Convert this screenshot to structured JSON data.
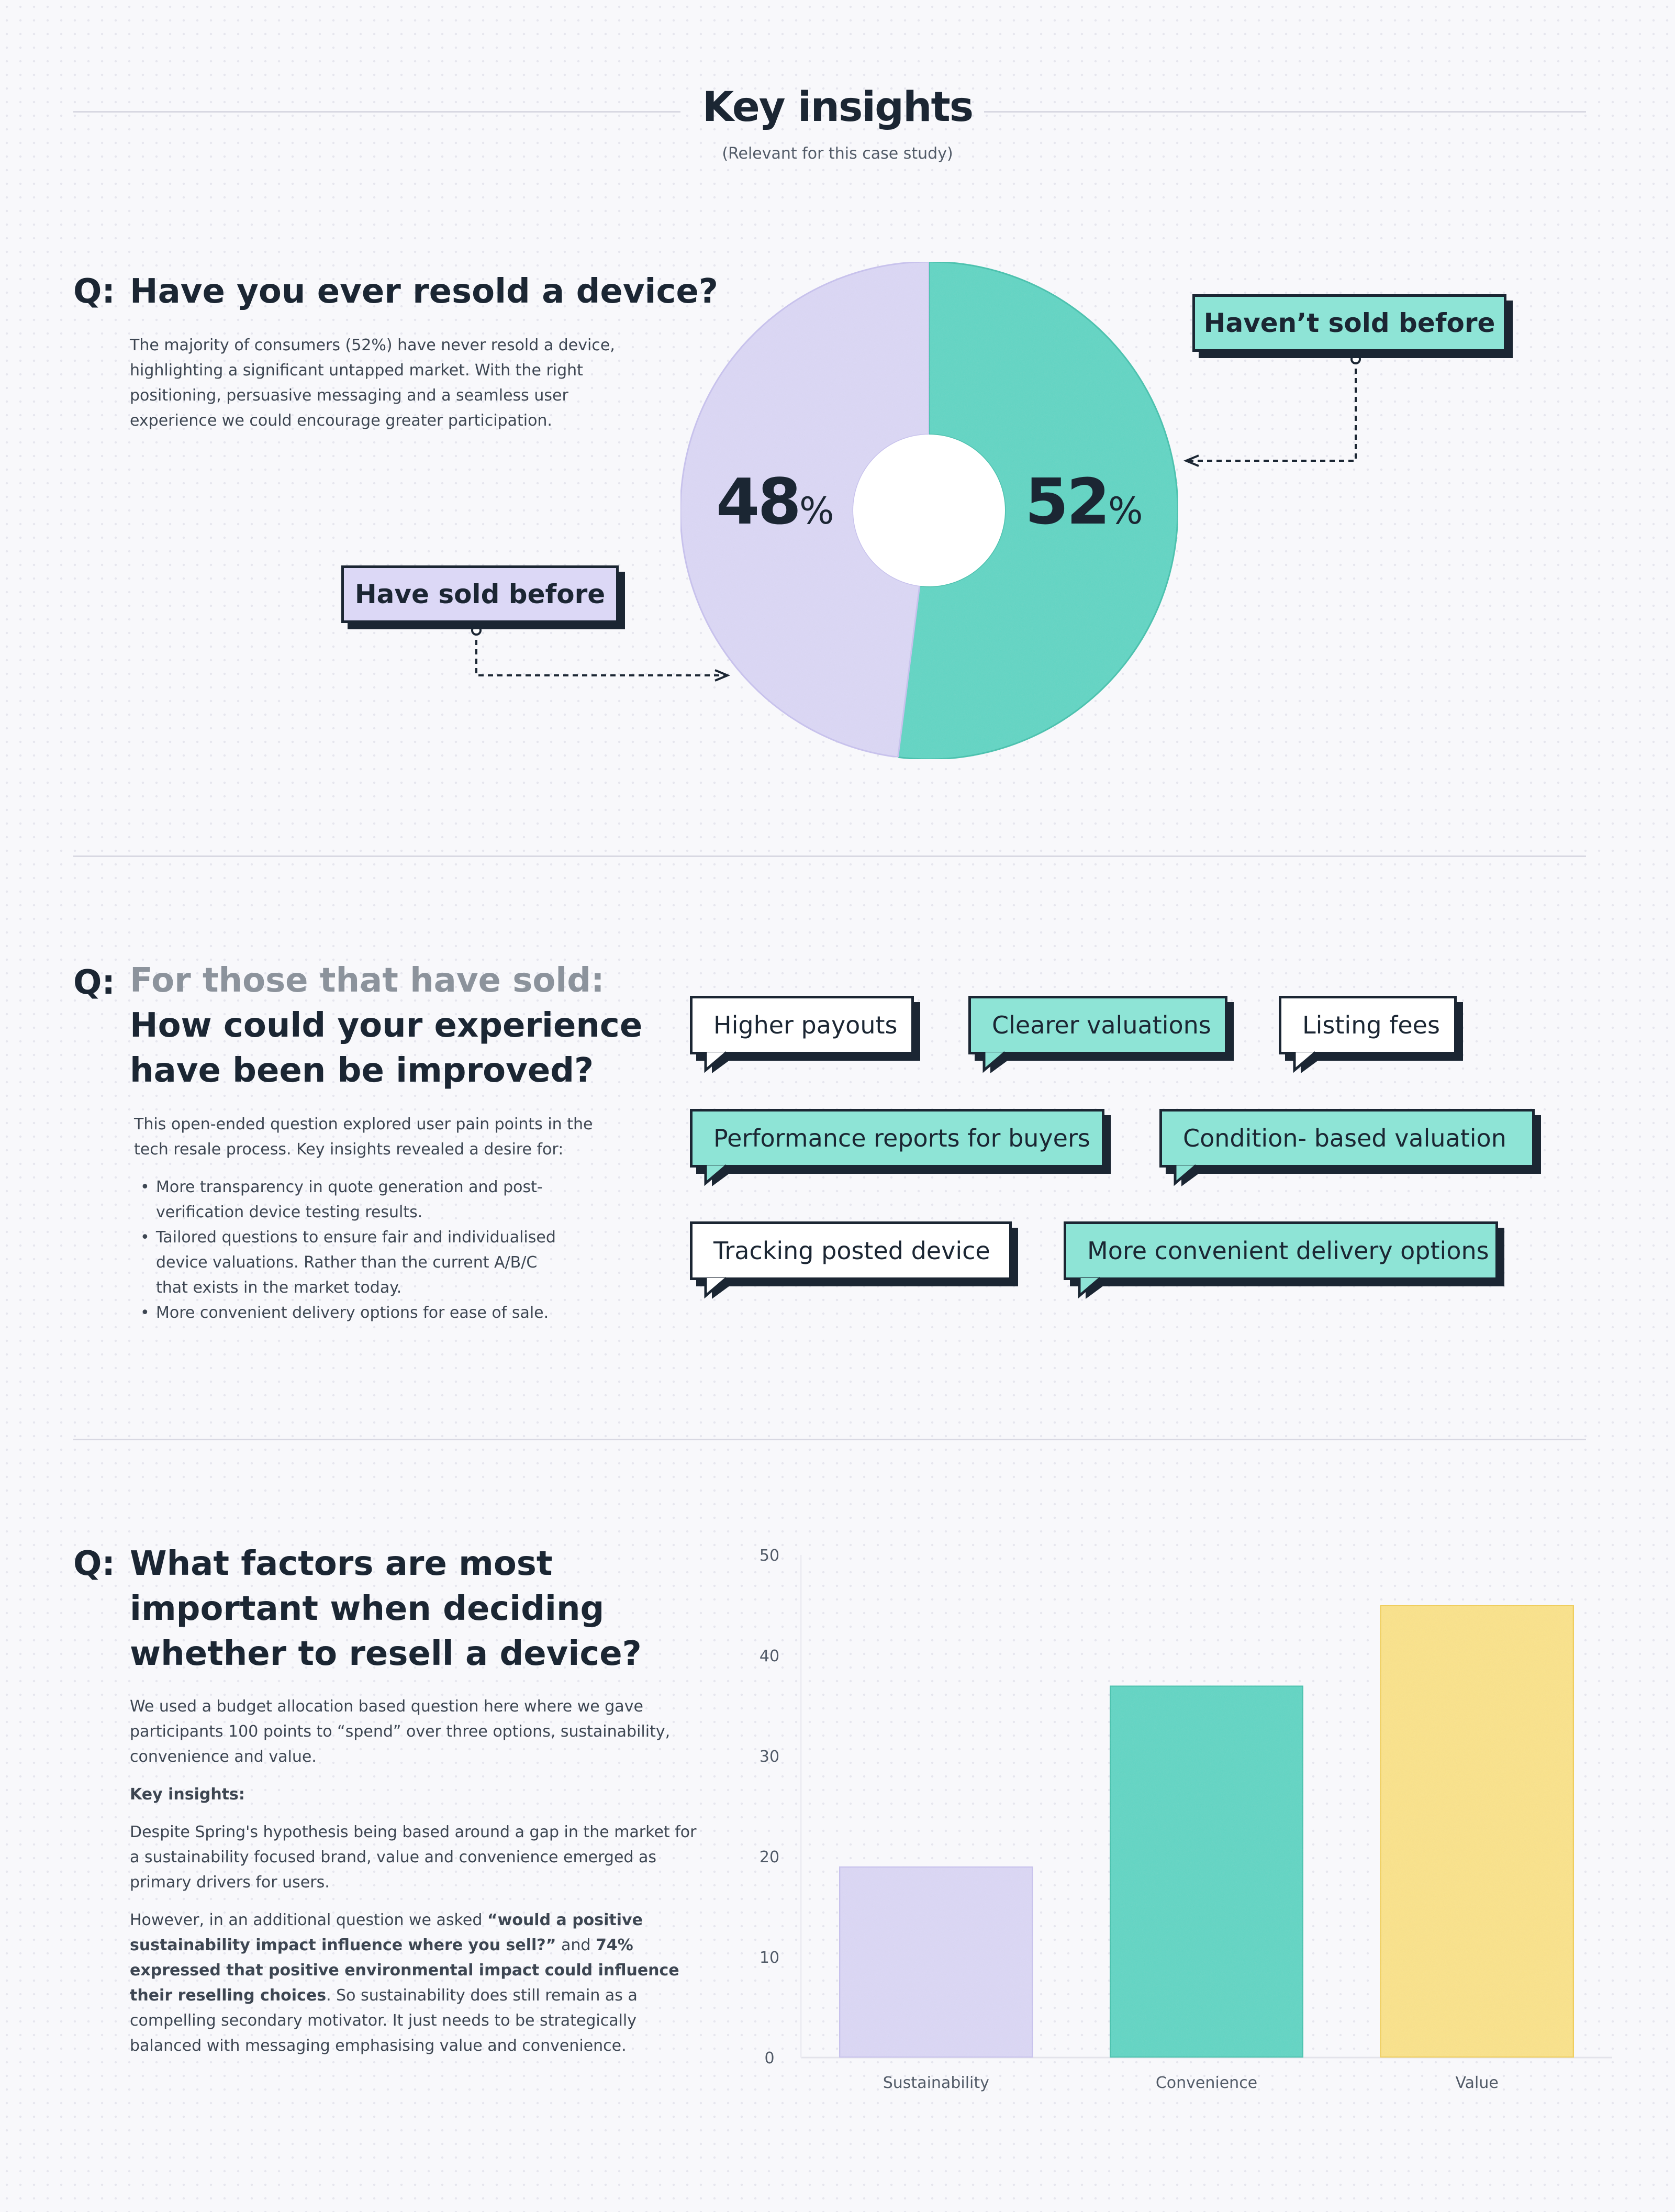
{
  "header": {
    "title": "Key insights",
    "subtitle": "(Relevant for this case study)"
  },
  "section1": {
    "q_prefix": "Q:",
    "question": "Have you ever resold a device?",
    "body": "The majority of consumers (52%) have never resold a device, highlighting a significant untapped market. With the right positioning, persuasive messaging and a seamless user experience we could encourage greater participation.",
    "label_sold": "Have sold before",
    "label_not_sold": "Haven’t sold before",
    "pct_sold": "48",
    "pct_not_sold": "52",
    "pct_symbol": "%"
  },
  "section2": {
    "q_prefix": "Q:",
    "question_grey": "For those that have sold:",
    "question_dark": "How could your experience have been be improved?",
    "intro": "This open-ended question explored user pain points in the tech resale process. Key insights revealed a desire for:",
    "bullets": [
      "More transparency in quote generation and post-verification device testing results.",
      "Tailored questions to ensure fair and individualised device valuations. Rather than the current A/B/C that exists in the market today.",
      "More convenient delivery options for ease of sale."
    ],
    "bubbles": [
      "Higher payouts",
      "Clearer valuations",
      "Listing fees",
      "Performance reports for buyers",
      "Condition-  based valuation",
      "Tracking posted device",
      "More convenient delivery options"
    ]
  },
  "section3": {
    "q_prefix": "Q:",
    "question": "What factors are most important when deciding whether to resell a  device?",
    "para1": "We used a budget allocation based question here where we gave participants 100 points to “spend” over three options, sustainability, convenience and value.",
    "key_insights_label": "Key insights:",
    "para2": "Despite Spring's hypothesis being based around a gap in the market for a sustainability focused brand, value and convenience emerged as primary drivers for users.",
    "para3_a": "However, in an additional question we asked ",
    "para3_b": "“would a positive sustainability impact influence where you sell?”",
    "para3_c": " and ",
    "para3_d": "74% expressed that positive environmental impact could influence their reselling choices",
    "para3_e": ". So sustainability does still remain as a compelling secondary motivator. It just needs to be strategically balanced with messaging emphasising value and convenience."
  },
  "colors": {
    "lavender": "#dcd8f6",
    "lavender_stroke": "#c9c3ef",
    "teal": "#5fd6c4",
    "teal_stroke": "#3fc2ae",
    "yellow": "#fbe38a",
    "yellow_stroke": "#f2cf55",
    "dark": "#1b2633"
  },
  "chart_data": [
    {
      "type": "pie",
      "categories": [
        "Have sold before",
        "Haven’t sold before"
      ],
      "values": [
        48,
        52
      ]
    },
    {
      "type": "bar",
      "categories": [
        "Sustainability",
        "Convenience",
        "Value"
      ],
      "values": [
        19,
        37,
        45
      ],
      "ylim": [
        0,
        50
      ],
      "yticks": [
        0,
        10,
        20,
        30,
        40,
        50
      ],
      "grid": false
    }
  ]
}
